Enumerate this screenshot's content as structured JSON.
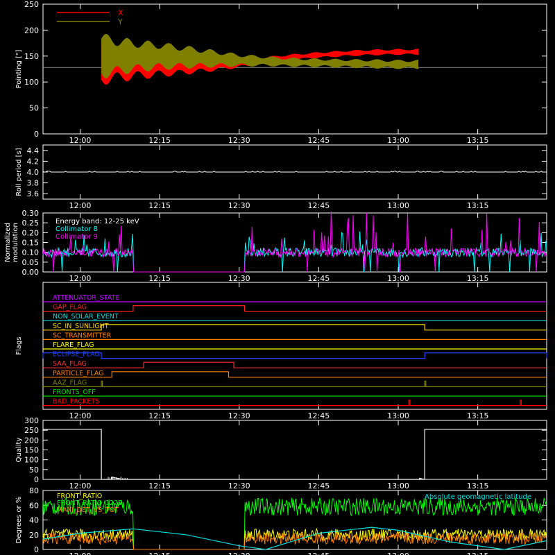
{
  "time_ticks": [
    "12:00",
    "12:15",
    "12:30",
    "12:45",
    "13:00",
    "13:15"
  ],
  "chart_data": [
    {
      "id": "pointing",
      "type": "line",
      "ylabel": "Pointing [\"]",
      "ylim": [
        0,
        250
      ],
      "yticks": [
        "0",
        "50",
        "100",
        "150",
        "200",
        "250"
      ],
      "time_range": [
        "11:53",
        "13:28"
      ],
      "reference_level": 128,
      "series": [
        {
          "name": "X",
          "color": "#ff0000",
          "time": [
            "12:04",
            "12:05",
            "12:10",
            "12:15",
            "12:20",
            "12:25",
            "12:30",
            "12:35",
            "12:40",
            "12:45",
            "12:50",
            "12:55",
            "13:00",
            "13:04"
          ],
          "center": [
            140,
            140,
            138,
            136,
            134,
            135,
            137,
            142,
            148,
            152,
            155,
            157,
            158,
            158
          ],
          "amplitude": [
            95,
            90,
            70,
            55,
            40,
            30,
            20,
            14,
            12,
            12,
            12,
            12,
            12,
            12
          ]
        },
        {
          "name": "Y",
          "color": "#808000",
          "time": [
            "12:04",
            "12:05",
            "12:10",
            "12:15",
            "12:20",
            "12:25",
            "12:30",
            "12:35",
            "12:40",
            "12:45",
            "12:50",
            "12:55",
            "13:00",
            "13:04"
          ],
          "center": [
            150,
            150,
            150,
            150,
            148,
            145,
            142,
            140,
            138,
            137,
            136,
            135,
            134,
            134
          ],
          "amplitude": [
            90,
            85,
            65,
            55,
            45,
            35,
            25,
            20,
            18,
            17,
            17,
            18,
            18,
            18
          ]
        }
      ]
    },
    {
      "id": "roll_period",
      "type": "line",
      "ylabel": "Roll period [s]",
      "ylim": [
        3.5,
        4.5
      ],
      "yticks": [
        "3.6",
        "3.8",
        "4.0",
        "4.2",
        "4.4"
      ],
      "series": [
        {
          "time": [
            "11:53",
            "13:28"
          ],
          "values": [
            4.0,
            4.0
          ],
          "color": "#ffffff"
        }
      ]
    },
    {
      "id": "modulation",
      "type": "line",
      "ylabel": "Normalized modulation",
      "ylim": [
        0,
        0.3
      ],
      "yticks": [
        "0.00",
        "0.05",
        "0.10",
        "0.15",
        "0.20",
        "0.25",
        "0.30"
      ],
      "annotation": "Energy band: 12-25 keV",
      "gap": [
        "12:10",
        "12:31"
      ],
      "series": [
        {
          "name": "Collimator 8",
          "color": "#00ffff",
          "baseline": 0.1,
          "noise_max": 0.21
        },
        {
          "name": "Collimator 9",
          "color": "#ff00ff",
          "baseline": 0.1,
          "noise_max": 0.31
        }
      ]
    },
    {
      "id": "flags",
      "type": "step",
      "ylabel": "Flags",
      "flags": [
        {
          "label": "ATTENUATOR_STATE",
          "color": "#c000ff",
          "on": []
        },
        {
          "label": "GAP_FLAG",
          "color": "#ff2020",
          "on": [
            [
              "12:10",
              "12:31"
            ]
          ]
        },
        {
          "label": "NON_SOLAR_EVENT",
          "color": "#00e0e0",
          "on": []
        },
        {
          "label": "SC_IN_SUNLIGHT",
          "color": "#ffd700",
          "on": [
            [
              "12:04",
              "13:05"
            ]
          ]
        },
        {
          "label": "SC_TRANSMITTER",
          "color": "#ff8000",
          "on": []
        },
        {
          "label": "FLARE_FLAG",
          "color": "#ffff00",
          "on": []
        },
        {
          "label": "ECLIPSE_FLAG",
          "color": "#2040ff",
          "on": [
            [
              "11:53",
              "12:04"
            ],
            [
              "13:05",
              "13:28"
            ]
          ]
        },
        {
          "label": "SAA_FLAG",
          "color": "#ff3030",
          "on": [
            [
              "12:12",
              "12:29"
            ]
          ]
        },
        {
          "label": "PARTICLE_FLAG",
          "color": "#ff8000",
          "on": [
            [
              "12:06",
              "12:28"
            ]
          ]
        },
        {
          "label": "AAZ_FLAG",
          "color": "#808000",
          "on": [
            [
              "12:04",
              "12:04"
            ],
            [
              "13:05",
              "13:05"
            ]
          ]
        },
        {
          "label": "FRONTS_OFF",
          "color": "#00e000",
          "on": []
        },
        {
          "label": "BAD_PACKETS",
          "color": "#ff0000",
          "on": [
            [
              "13:02",
              "13:02"
            ],
            [
              "13:23",
              "13:23"
            ]
          ]
        }
      ]
    },
    {
      "id": "quality",
      "type": "line",
      "ylabel": "Quality",
      "ylim": [
        0,
        300
      ],
      "yticks": [
        "0",
        "50",
        "100",
        "150",
        "200",
        "250",
        "300"
      ],
      "series": [
        {
          "color": "#ffffff",
          "time": [
            "11:53",
            "12:04",
            "12:04",
            "12:06",
            "12:06",
            "12:08",
            "13:04",
            "13:04",
            "13:05",
            "13:05",
            "13:28"
          ],
          "values": [
            255,
            255,
            0,
            0,
            12,
            0,
            0,
            5,
            0,
            255,
            255
          ]
        }
      ]
    },
    {
      "id": "fronts",
      "type": "line",
      "ylabel": "Degrees or %",
      "ylim": [
        0,
        80
      ],
      "yticks": [
        "0",
        "20",
        "40",
        "60",
        "80"
      ],
      "gap": [
        "12:10",
        "12:31"
      ],
      "series": [
        {
          "name": "FRONT_RATIO",
          "color": "#ffff00",
          "level": 20,
          "noise": 8
        },
        {
          "name": "FRONT_RATIO_1225",
          "color": "#00ff00",
          "level": 58,
          "noise": 12
        },
        {
          "name": "MAXI_DET_VS_TOT",
          "color": "#ff8000",
          "level": 15,
          "noise": 8
        },
        {
          "name": "Absolute geomagnetic latitude",
          "color": "#00e0e0",
          "time": [
            "11:53",
            "12:00",
            "12:10",
            "12:20",
            "12:30",
            "12:35",
            "12:45",
            "12:55",
            "13:00",
            "13:10",
            "13:20",
            "13:28"
          ],
          "values": [
            14,
            22,
            28,
            20,
            5,
            0,
            22,
            30,
            26,
            10,
            0,
            12
          ]
        }
      ]
    }
  ]
}
